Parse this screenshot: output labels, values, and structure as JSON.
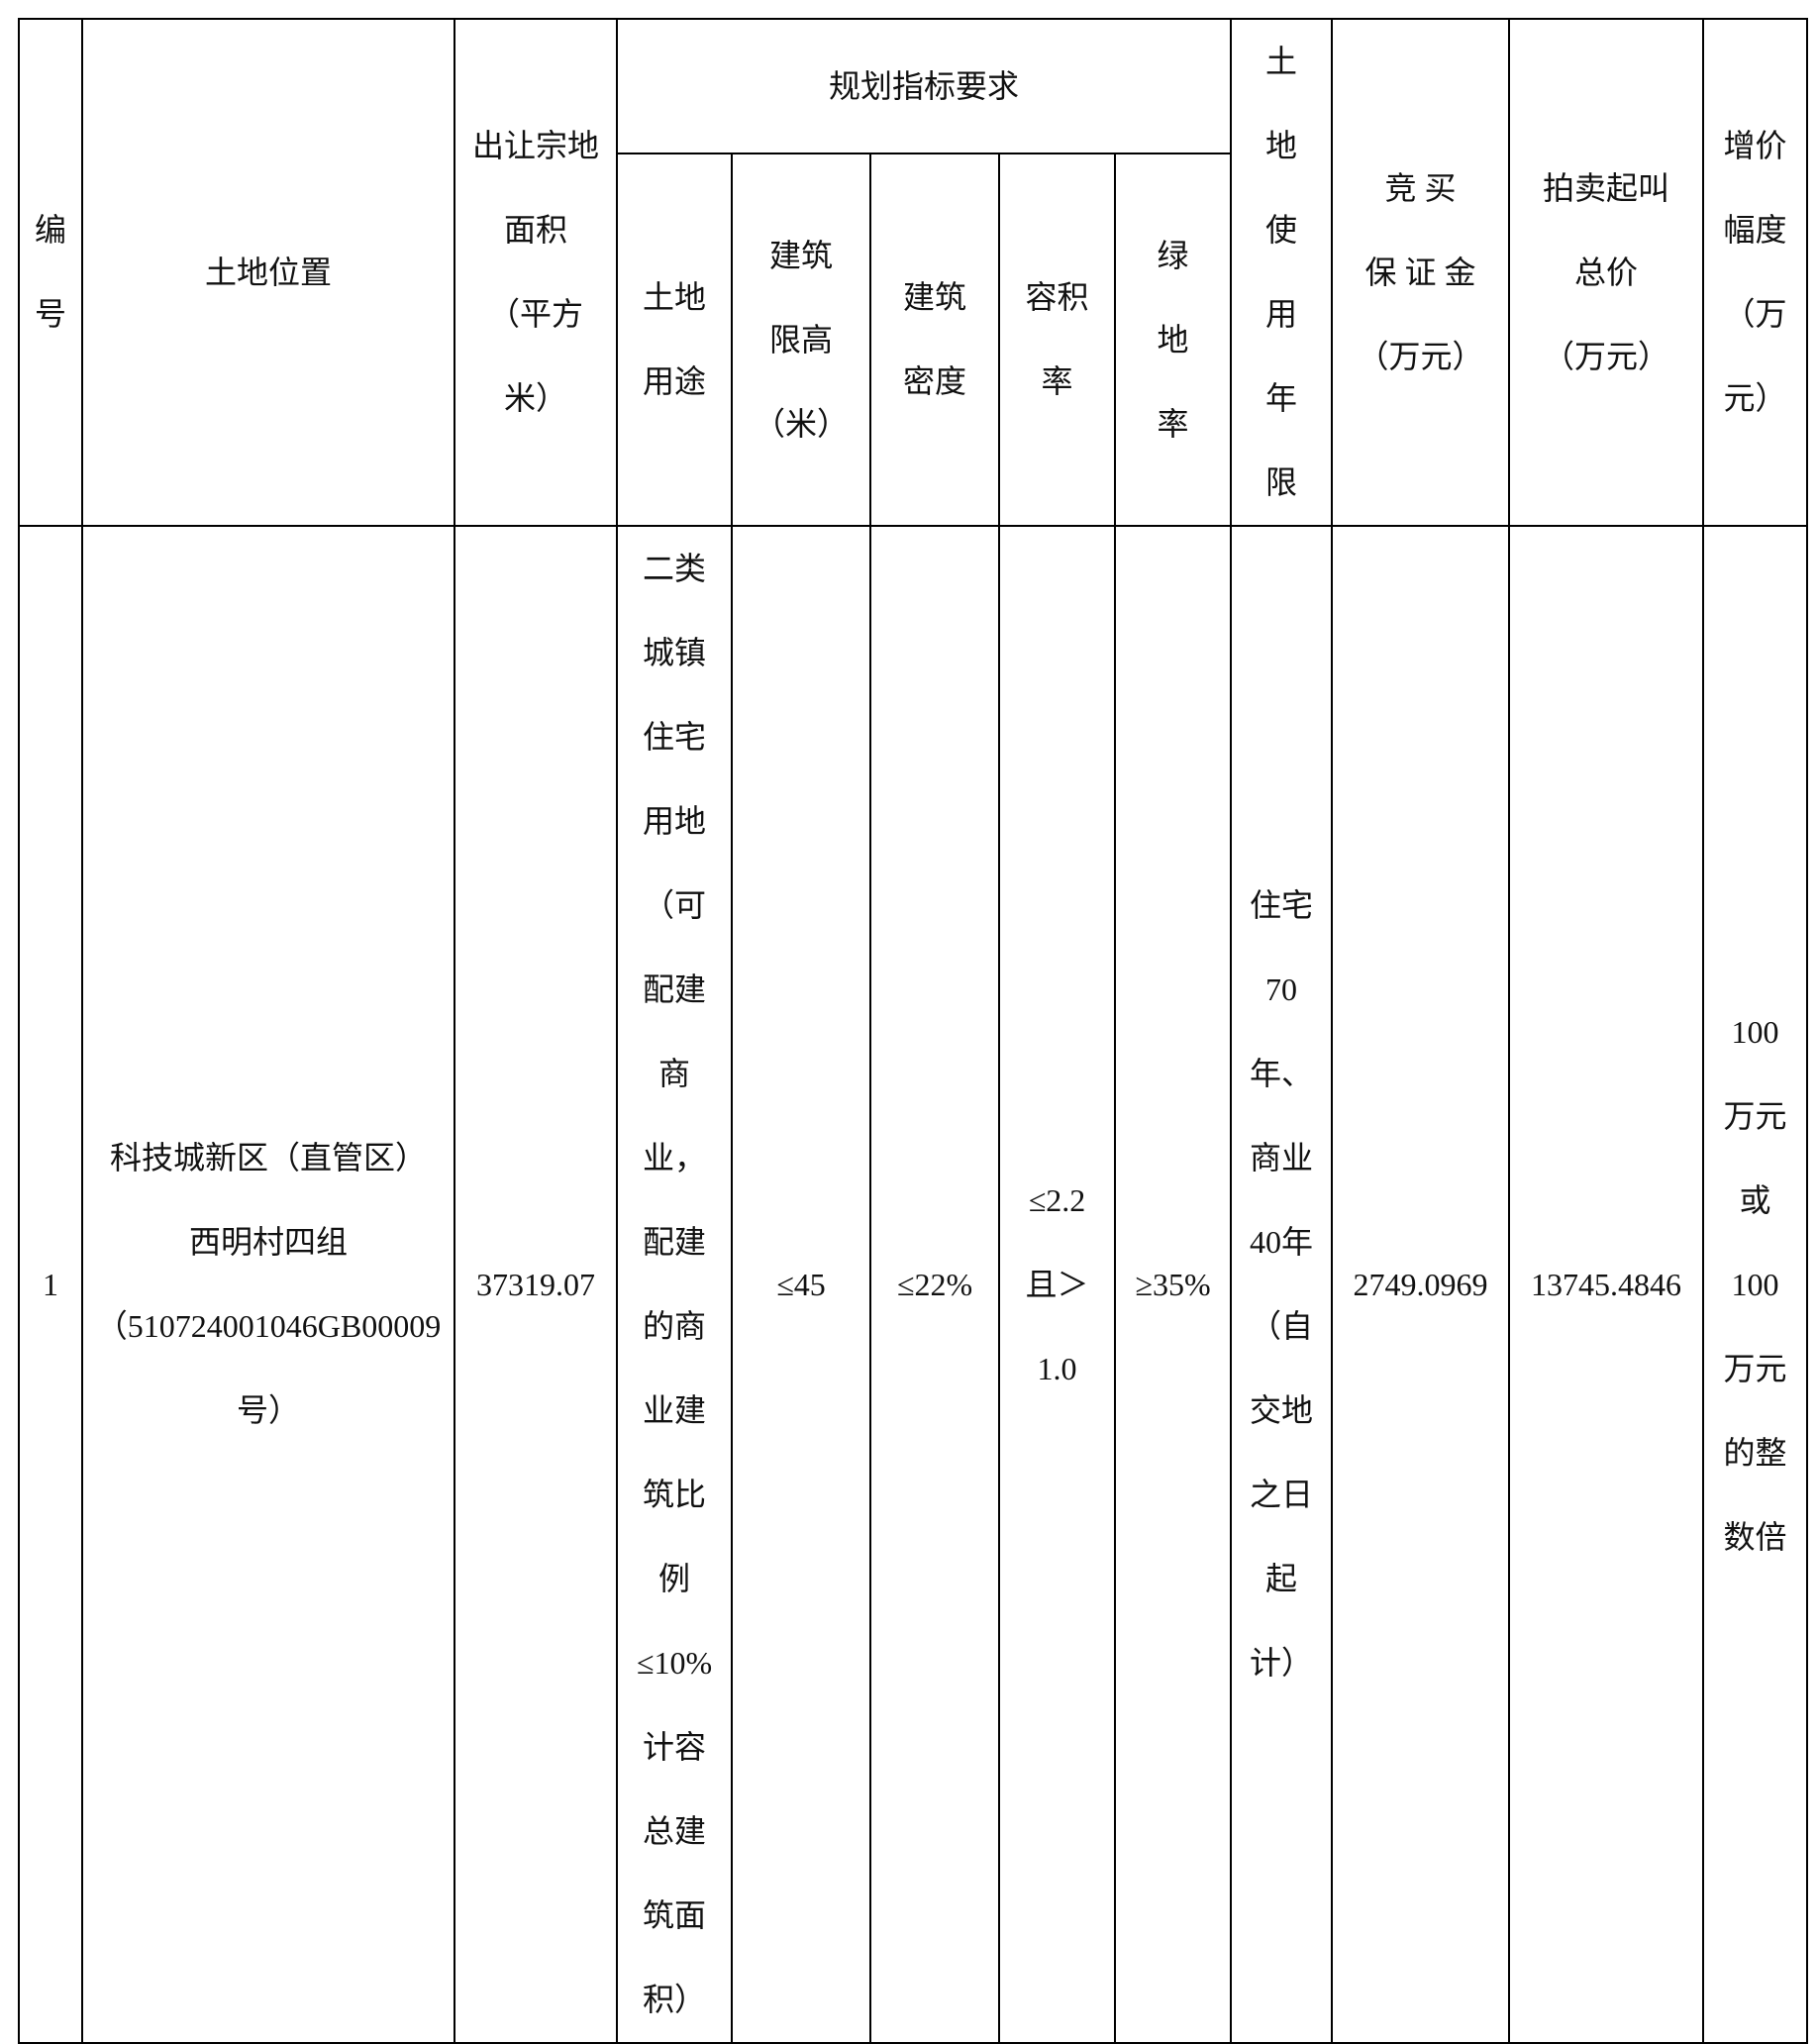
{
  "headers": {
    "no": "编\n号",
    "location": "土地位置",
    "area": "出让宗地\n面积\n（平方\n米）",
    "planning": "规划指标要求",
    "use": "土地\n用途",
    "height": "建筑\n限高\n（米）",
    "density": "建筑\n密度",
    "far": "容积\n率",
    "green": "绿\n地\n率",
    "term": "土\n地\n使\n用\n年\n限",
    "deposit": "竞 买\n保 证 金\n（万元）",
    "start_price": "拍卖起叫\n总价\n（万元）",
    "increment": "增价\n幅度\n（万\n元）"
  },
  "rows": [
    {
      "no": "1",
      "location": "科技城新区（直管区）\n西明村四组\n（510724001046GB00009\n号）",
      "area": "37319.07",
      "use": "二类\n城镇\n住宅\n用地\n（可\n配建\n商\n业，\n配建\n的商\n业建\n筑比\n例\n≤10%\n计容\n总建\n筑面\n积）",
      "height": "≤45",
      "density": "≤22%",
      "far": "≤2.2\n且＞\n1.0",
      "green": "≥35%",
      "term": "住宅\n70\n年、\n商业\n40年\n（自\n交地\n之日\n起\n计）",
      "deposit": "2749.0969",
      "start_price": "13745.4846",
      "increment": "100\n万元\n或\n100\n万元\n的整\n数倍"
    }
  ]
}
